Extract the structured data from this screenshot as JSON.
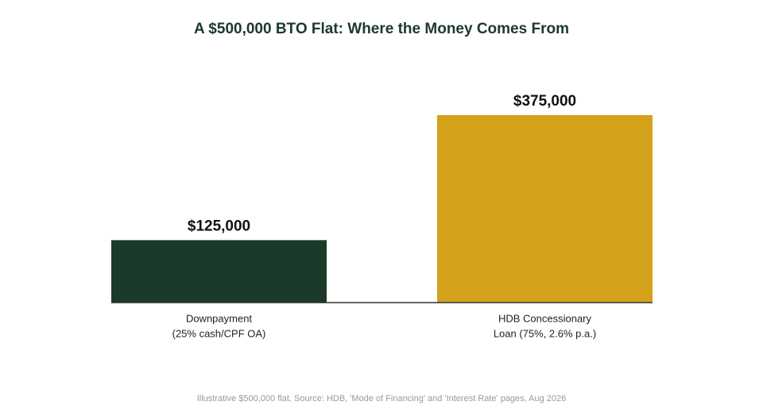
{
  "chart_data": {
    "type": "bar",
    "title": "A $500,000 BTO Flat: Where the Money Comes From",
    "categories": [
      [
        "Downpayment",
        "(25% cash/CPF OA)"
      ],
      [
        "HDB Concessionary",
        "Loan (75%, 2.6% p.a.)"
      ]
    ],
    "values": [
      125000,
      375000
    ],
    "value_labels": [
      "$125,000",
      "$375,000"
    ],
    "colors": [
      "#1b3a2a",
      "#d4a11a"
    ],
    "source": "Illustrative $500,000 flat. Source: HDB, 'Mode of Financing' and 'Interest Rate' pages, Aug 2026"
  }
}
